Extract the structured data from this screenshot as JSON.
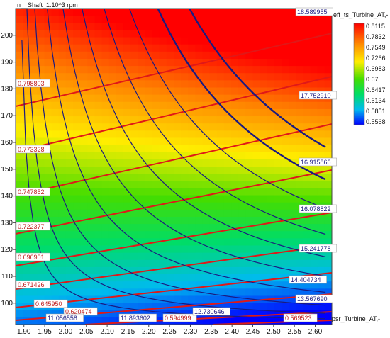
{
  "chart_data": {
    "type": "heatmap",
    "xlabel": "psr_Turbine_AT,-",
    "ylabel": "n__Shaft_1.10^3 rpm",
    "colorbar_label": "eff_ts_Turbine_AT,-",
    "xlim": [
      1.88,
      2.64
    ],
    "ylim": [
      92,
      210
    ],
    "x_ticks": [
      "1.90",
      "1.95",
      "2.00",
      "2.05",
      "2.10",
      "2.15",
      "2.20",
      "2.25",
      "2.30",
      "2.35",
      "2.40",
      "2.45",
      "2.50",
      "2.55",
      "2.60"
    ],
    "y_ticks": [
      "100",
      "110",
      "120",
      "130",
      "140",
      "150",
      "160",
      "170",
      "180",
      "190",
      "200"
    ],
    "colorbar": {
      "ticks": [
        "0.8115",
        "0.7832",
        "0.7549",
        "0.7266",
        "0.6983",
        "0.67",
        "0.6417",
        "0.6134",
        "0.5851",
        "0.5568"
      ],
      "min": 0.5568,
      "max": 0.8115
    },
    "efficiency_contours": [
      {
        "label": "0.798803"
      },
      {
        "label": "0.773328"
      },
      {
        "label": "0.747852"
      },
      {
        "label": "0.722377"
      },
      {
        "label": "0.696901"
      },
      {
        "label": "0.671426"
      },
      {
        "label": "0.645950"
      },
      {
        "label": "0.620474"
      },
      {
        "label": "0.594999"
      },
      {
        "label": "0.569523"
      }
    ],
    "mass_flow_contours": [
      {
        "label": "18.589955"
      },
      {
        "label": "17.752910"
      },
      {
        "label": "16.915866"
      },
      {
        "label": "16.078822"
      },
      {
        "label": "15.241778"
      },
      {
        "label": "14.404734"
      },
      {
        "label": "13.567690"
      },
      {
        "label": "12.730646"
      },
      {
        "label": "11.893602"
      },
      {
        "label": "11.056558"
      }
    ]
  }
}
